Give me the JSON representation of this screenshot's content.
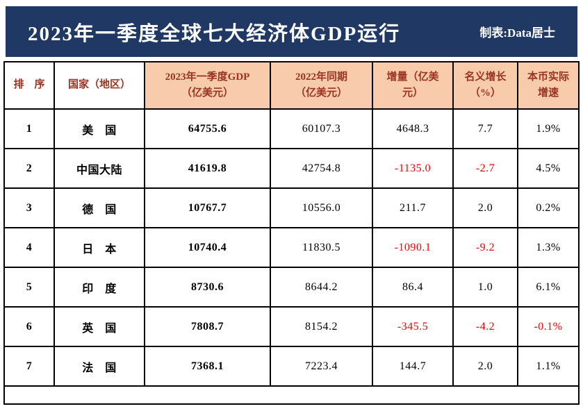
{
  "title": {
    "main": "2023年一季度全球七大经济体GDP运行",
    "credit": "制表:Data居士"
  },
  "table": {
    "headers": [
      "排　序",
      "国家（地区）",
      "2023年一季度GDP\n（亿美元）",
      "2022年同期\n（亿美元）",
      "增量（亿美\n元）",
      "名义增长\n（%）",
      "本币实际\n增速"
    ],
    "rows": [
      {
        "rank": "1",
        "country": "美　国",
        "gdp2023": "64755.6",
        "gdp2022": "60107.3",
        "delta": "4648.3",
        "nominal": "7.7",
        "real": "1.9%"
      },
      {
        "rank": "2",
        "country": "中国大陆",
        "gdp2023": "41619.8",
        "gdp2022": "42754.8",
        "delta": "-1135.0",
        "nominal": "-2.7",
        "real": "4.5%"
      },
      {
        "rank": "3",
        "country": "德　国",
        "gdp2023": "10767.7",
        "gdp2022": "10556.0",
        "delta": "211.7",
        "nominal": "2.0",
        "real": "0.2%"
      },
      {
        "rank": "4",
        "country": "日　本",
        "gdp2023": "10740.4",
        "gdp2022": "11830.5",
        "delta": "-1090.1",
        "nominal": "-9.2",
        "real": "1.3%"
      },
      {
        "rank": "5",
        "country": "印　度",
        "gdp2023": "8730.6",
        "gdp2022": "8644.2",
        "delta": "86.4",
        "nominal": "1.0",
        "real": "6.1%"
      },
      {
        "rank": "6",
        "country": "英　国",
        "gdp2023": "7808.7",
        "gdp2022": "8154.2",
        "delta": "-345.5",
        "nominal": "-4.2",
        "real": "-0.1%"
      },
      {
        "rank": "7",
        "country": "法　国",
        "gdp2023": "7368.1",
        "gdp2022": "7223.4",
        "delta": "144.7",
        "nominal": "2.0",
        "real": "1.1%"
      }
    ]
  },
  "colors": {
    "banner": "#203864",
    "header_fill": "#F8CBAD",
    "header_text": "#9A3324",
    "negative": "#EE0000"
  },
  "chart_data": {
    "type": "table",
    "title": "2023年一季度全球七大经济体GDP运行",
    "credit": "制表:Data居士",
    "columns": [
      "排序",
      "国家（地区）",
      "2023年一季度GDP（亿美元）",
      "2022年同期（亿美元）",
      "增量（亿美元）",
      "名义增长（%）",
      "本币实际增速"
    ],
    "rows": [
      [
        1,
        "美国",
        64755.6,
        60107.3,
        4648.3,
        7.7,
        "1.9%"
      ],
      [
        2,
        "中国大陆",
        41619.8,
        42754.8,
        -1135.0,
        -2.7,
        "4.5%"
      ],
      [
        3,
        "德国",
        10767.7,
        10556.0,
        211.7,
        2.0,
        "0.2%"
      ],
      [
        4,
        "日本",
        10740.4,
        11830.5,
        -1090.1,
        -9.2,
        "1.3%"
      ],
      [
        5,
        "印度",
        8730.6,
        8644.2,
        86.4,
        1.0,
        "6.1%"
      ],
      [
        6,
        "英国",
        7808.7,
        8154.2,
        -345.5,
        -4.2,
        "-0.1%"
      ],
      [
        7,
        "法国",
        7368.1,
        7223.4,
        144.7,
        2.0,
        "1.1%"
      ]
    ]
  }
}
